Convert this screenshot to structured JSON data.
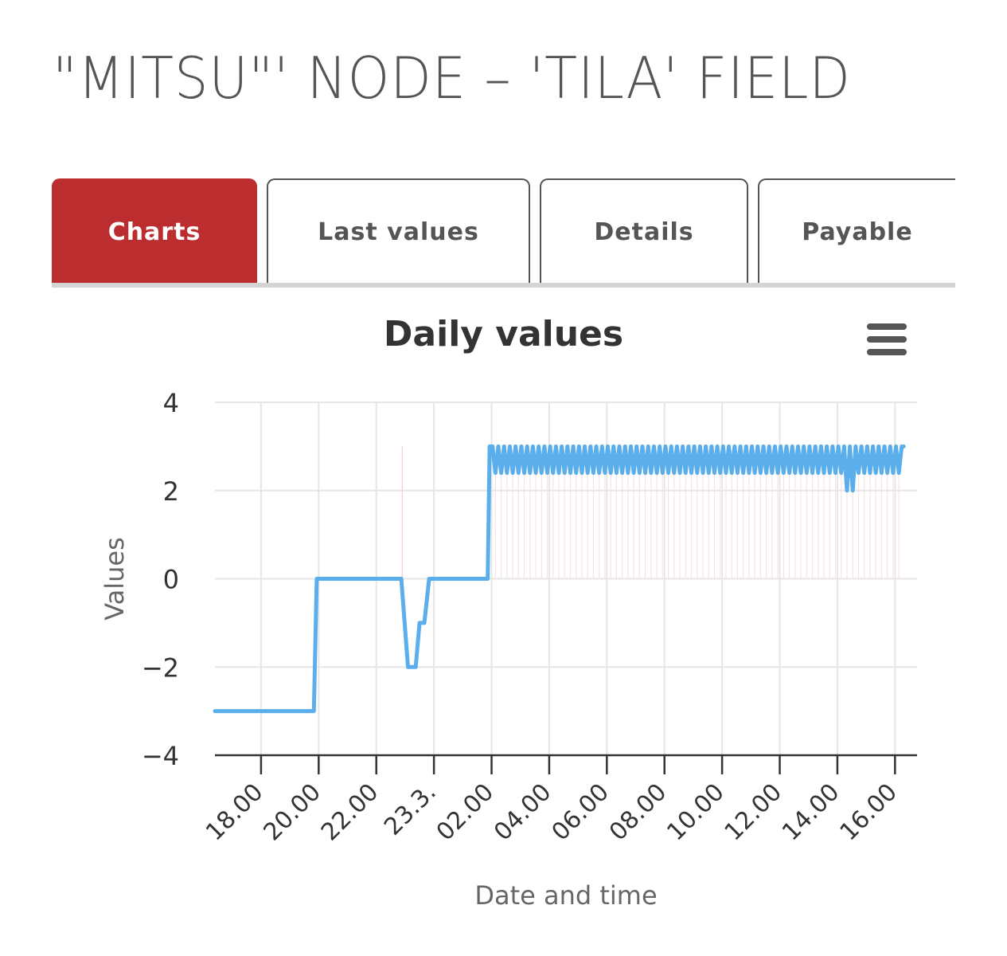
{
  "page": {
    "title": "\"MITSU\"' NODE – 'TILA' FIELD"
  },
  "tabs": [
    {
      "label": "Charts",
      "active": true
    },
    {
      "label": "Last values",
      "active": false
    },
    {
      "label": "Details",
      "active": false
    },
    {
      "label": "Payable",
      "active": false
    }
  ],
  "chart": {
    "title": "Daily values",
    "menu_icon": "hamburger-menu-icon",
    "xlabel": "Date and time",
    "ylabel": "Values",
    "line_color": "#5aaeec",
    "accent_color": "#bc2d2f"
  },
  "chart_data": {
    "type": "line",
    "title": "Daily values",
    "xlabel": "Date and time",
    "ylabel": "Values",
    "ylim": [
      -4,
      4
    ],
    "y_ticks": [
      -4,
      -2,
      0,
      2,
      4
    ],
    "y_tick_labels": [
      "−4",
      "−2",
      "0",
      "2",
      "4"
    ],
    "x_ticks": [
      "18.00",
      "20.00",
      "22.00",
      "23.3.",
      "02.00",
      "04.00",
      "06.00",
      "08.00",
      "10.00",
      "12.00",
      "14.00",
      "16.00"
    ],
    "xlim": [
      "22.3. 16:24",
      "23.3. 16:18"
    ],
    "grid": true,
    "legend": "none",
    "series": [
      {
        "color": "#5aaeec",
        "segments": [
          {
            "x": [
              "22.3. 16:24",
              "22.3. 19:50"
            ],
            "y": -3
          },
          {
            "x": [
              "22.3. 19:56",
              "22.3. 22:52"
            ],
            "y": 0
          },
          {
            "x": [
              "22.3. 23:06",
              "22.3. 23:22"
            ],
            "y": -2
          },
          {
            "x": [
              "22.3. 23:30",
              "22.3. 23:40"
            ],
            "y": -1
          },
          {
            "x": [
              "22.3. 23:50",
              "23.3. 01:52"
            ],
            "y": 0
          },
          {
            "x": [
              "23.3. 01:56",
              "23.3. 16:18"
            ],
            "y_max": 3,
            "y_min": 2.4,
            "pattern": "oscillating"
          }
        ],
        "notable_points": [
          {
            "x": "23.3. 14:30",
            "y": 2
          }
        ]
      }
    ]
  }
}
